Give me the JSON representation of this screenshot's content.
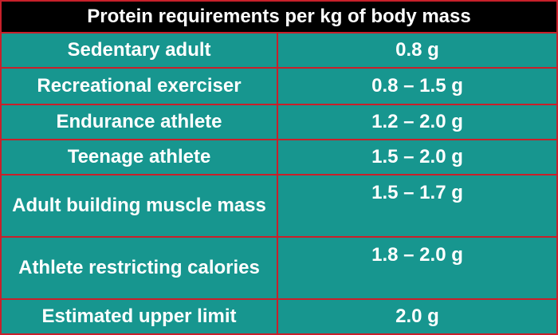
{
  "header": {
    "title": "Protein requirements per kg of body mass"
  },
  "table": {
    "rows": [
      [
        "Sedentary adult",
        "0.8 g"
      ],
      [
        "Recreational exerciser",
        "0.8 – 1.5 g"
      ],
      [
        "Endurance athlete",
        "1.2 – 2.0 g"
      ],
      [
        "Teenage athlete",
        "1.5 – 2.0 g"
      ],
      [
        "Adult building muscle mass",
        "1.5 – 1.7 g"
      ],
      [
        "Athlete restricting calories",
        "1.8 – 2.0 g"
      ],
      [
        "Estimated upper limit",
        "2.0 g"
      ]
    ]
  }
}
